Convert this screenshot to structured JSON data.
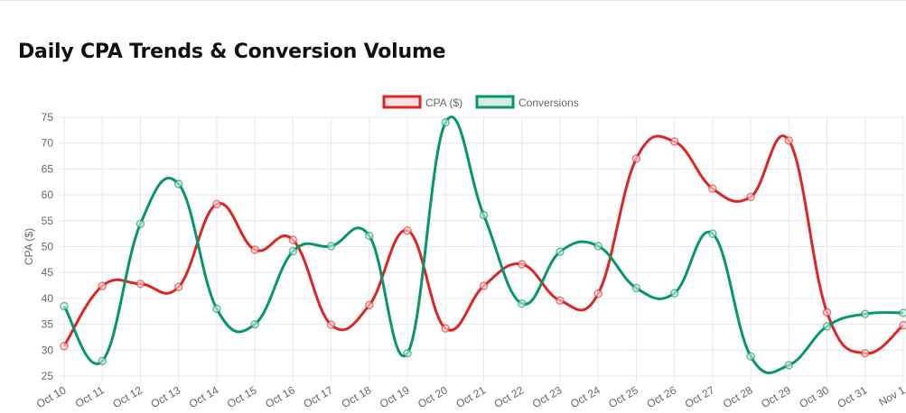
{
  "title": "Daily CPA Trends & Conversion Volume",
  "chart_data": {
    "type": "line",
    "title": "Daily CPA Trends & Conversion Volume",
    "xlabel": "",
    "ylabel": "CPA ($)",
    "ylim": [
      25,
      75
    ],
    "yticks": [
      25,
      30,
      35,
      40,
      45,
      50,
      55,
      60,
      65,
      70,
      75
    ],
    "grid": true,
    "legend_position": "top-center",
    "categories": [
      "Oct 10",
      "Oct 11",
      "Oct 12",
      "Oct 13",
      "Oct 14",
      "Oct 15",
      "Oct 16",
      "Oct 17",
      "Oct 18",
      "Oct 19",
      "Oct 20",
      "Oct 21",
      "Oct 22",
      "Oct 23",
      "Oct 24",
      "Oct 25",
      "Oct 26",
      "Oct 27",
      "Oct 28",
      "Oct 29",
      "Oct 30",
      "Oct 31",
      "Nov 1"
    ],
    "series": [
      {
        "name": "CPA ($)",
        "color": "#dc2626",
        "fill": "#fde2e2",
        "values": [
          30.8,
          42.4,
          42.8,
          42.2,
          58.2,
          49.4,
          51.3,
          34.9,
          38.7,
          53.1,
          34.2,
          42.4,
          46.6,
          39.6,
          40.9,
          67.0,
          70.3,
          61.2,
          59.6,
          70.5,
          37.3,
          29.4,
          34.8
        ]
      },
      {
        "name": "Conversions",
        "color": "#059669",
        "fill": "#d5efe5",
        "values": [
          38.5,
          27.9,
          54.4,
          62.1,
          38.0,
          35.0,
          49.1,
          50.1,
          52.1,
          29.4,
          74.0,
          56.1,
          39.0,
          49.0,
          50.1,
          42.0,
          41.0,
          52.5,
          28.8,
          27.1,
          34.6,
          37.0,
          37.2
        ]
      }
    ]
  }
}
